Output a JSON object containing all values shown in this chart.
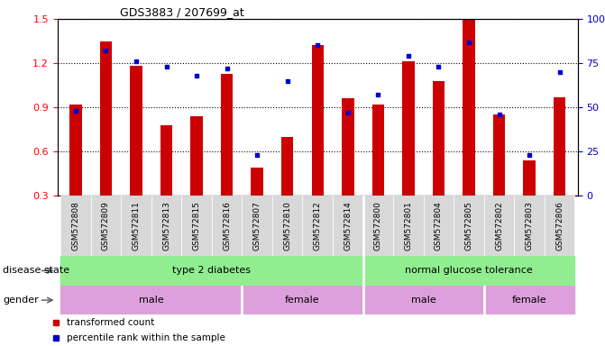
{
  "title": "GDS3883 / 207699_at",
  "samples": [
    "GSM572808",
    "GSM572809",
    "GSM572811",
    "GSM572813",
    "GSM572815",
    "GSM572816",
    "GSM572807",
    "GSM572810",
    "GSM572812",
    "GSM572814",
    "GSM572800",
    "GSM572801",
    "GSM572804",
    "GSM572805",
    "GSM572802",
    "GSM572803",
    "GSM572806"
  ],
  "transformed_count": [
    0.92,
    1.35,
    1.18,
    0.78,
    0.84,
    1.13,
    0.49,
    0.7,
    1.32,
    0.96,
    0.92,
    1.21,
    1.08,
    1.5,
    0.85,
    0.54,
    0.97
  ],
  "percentile_rank": [
    48,
    82,
    76,
    73,
    68,
    72,
    23,
    65,
    85,
    47,
    57,
    79,
    73,
    87,
    46,
    23,
    70
  ],
  "ylim_left": [
    0.3,
    1.5
  ],
  "ylim_right": [
    0,
    100
  ],
  "yticks_left": [
    0.3,
    0.6,
    0.9,
    1.2,
    1.5
  ],
  "yticks_right": [
    0,
    25,
    50,
    75,
    100
  ],
  "bar_color": "#cc0000",
  "dot_color": "#0000cc",
  "disease_state_groups": [
    {
      "label": "type 2 diabetes",
      "start": 0,
      "end": 9,
      "color": "#90EE90"
    },
    {
      "label": "normal glucose tolerance",
      "start": 10,
      "end": 16,
      "color": "#90EE90"
    }
  ],
  "gender_groups": [
    {
      "label": "male",
      "start": 0,
      "end": 5
    },
    {
      "label": "female",
      "start": 6,
      "end": 9
    },
    {
      "label": "male",
      "start": 10,
      "end": 13
    },
    {
      "label": "female",
      "start": 14,
      "end": 16
    }
  ],
  "gender_color": "#DDA0DD",
  "legend_items": [
    {
      "label": "transformed count",
      "color": "#cc0000"
    },
    {
      "label": "percentile rank within the sample",
      "color": "#0000cc"
    }
  ],
  "disease_state_label": "disease state",
  "gender_label": "gender",
  "background_color": "#ffffff",
  "tick_label_fontsize": 7,
  "bar_width": 0.4
}
